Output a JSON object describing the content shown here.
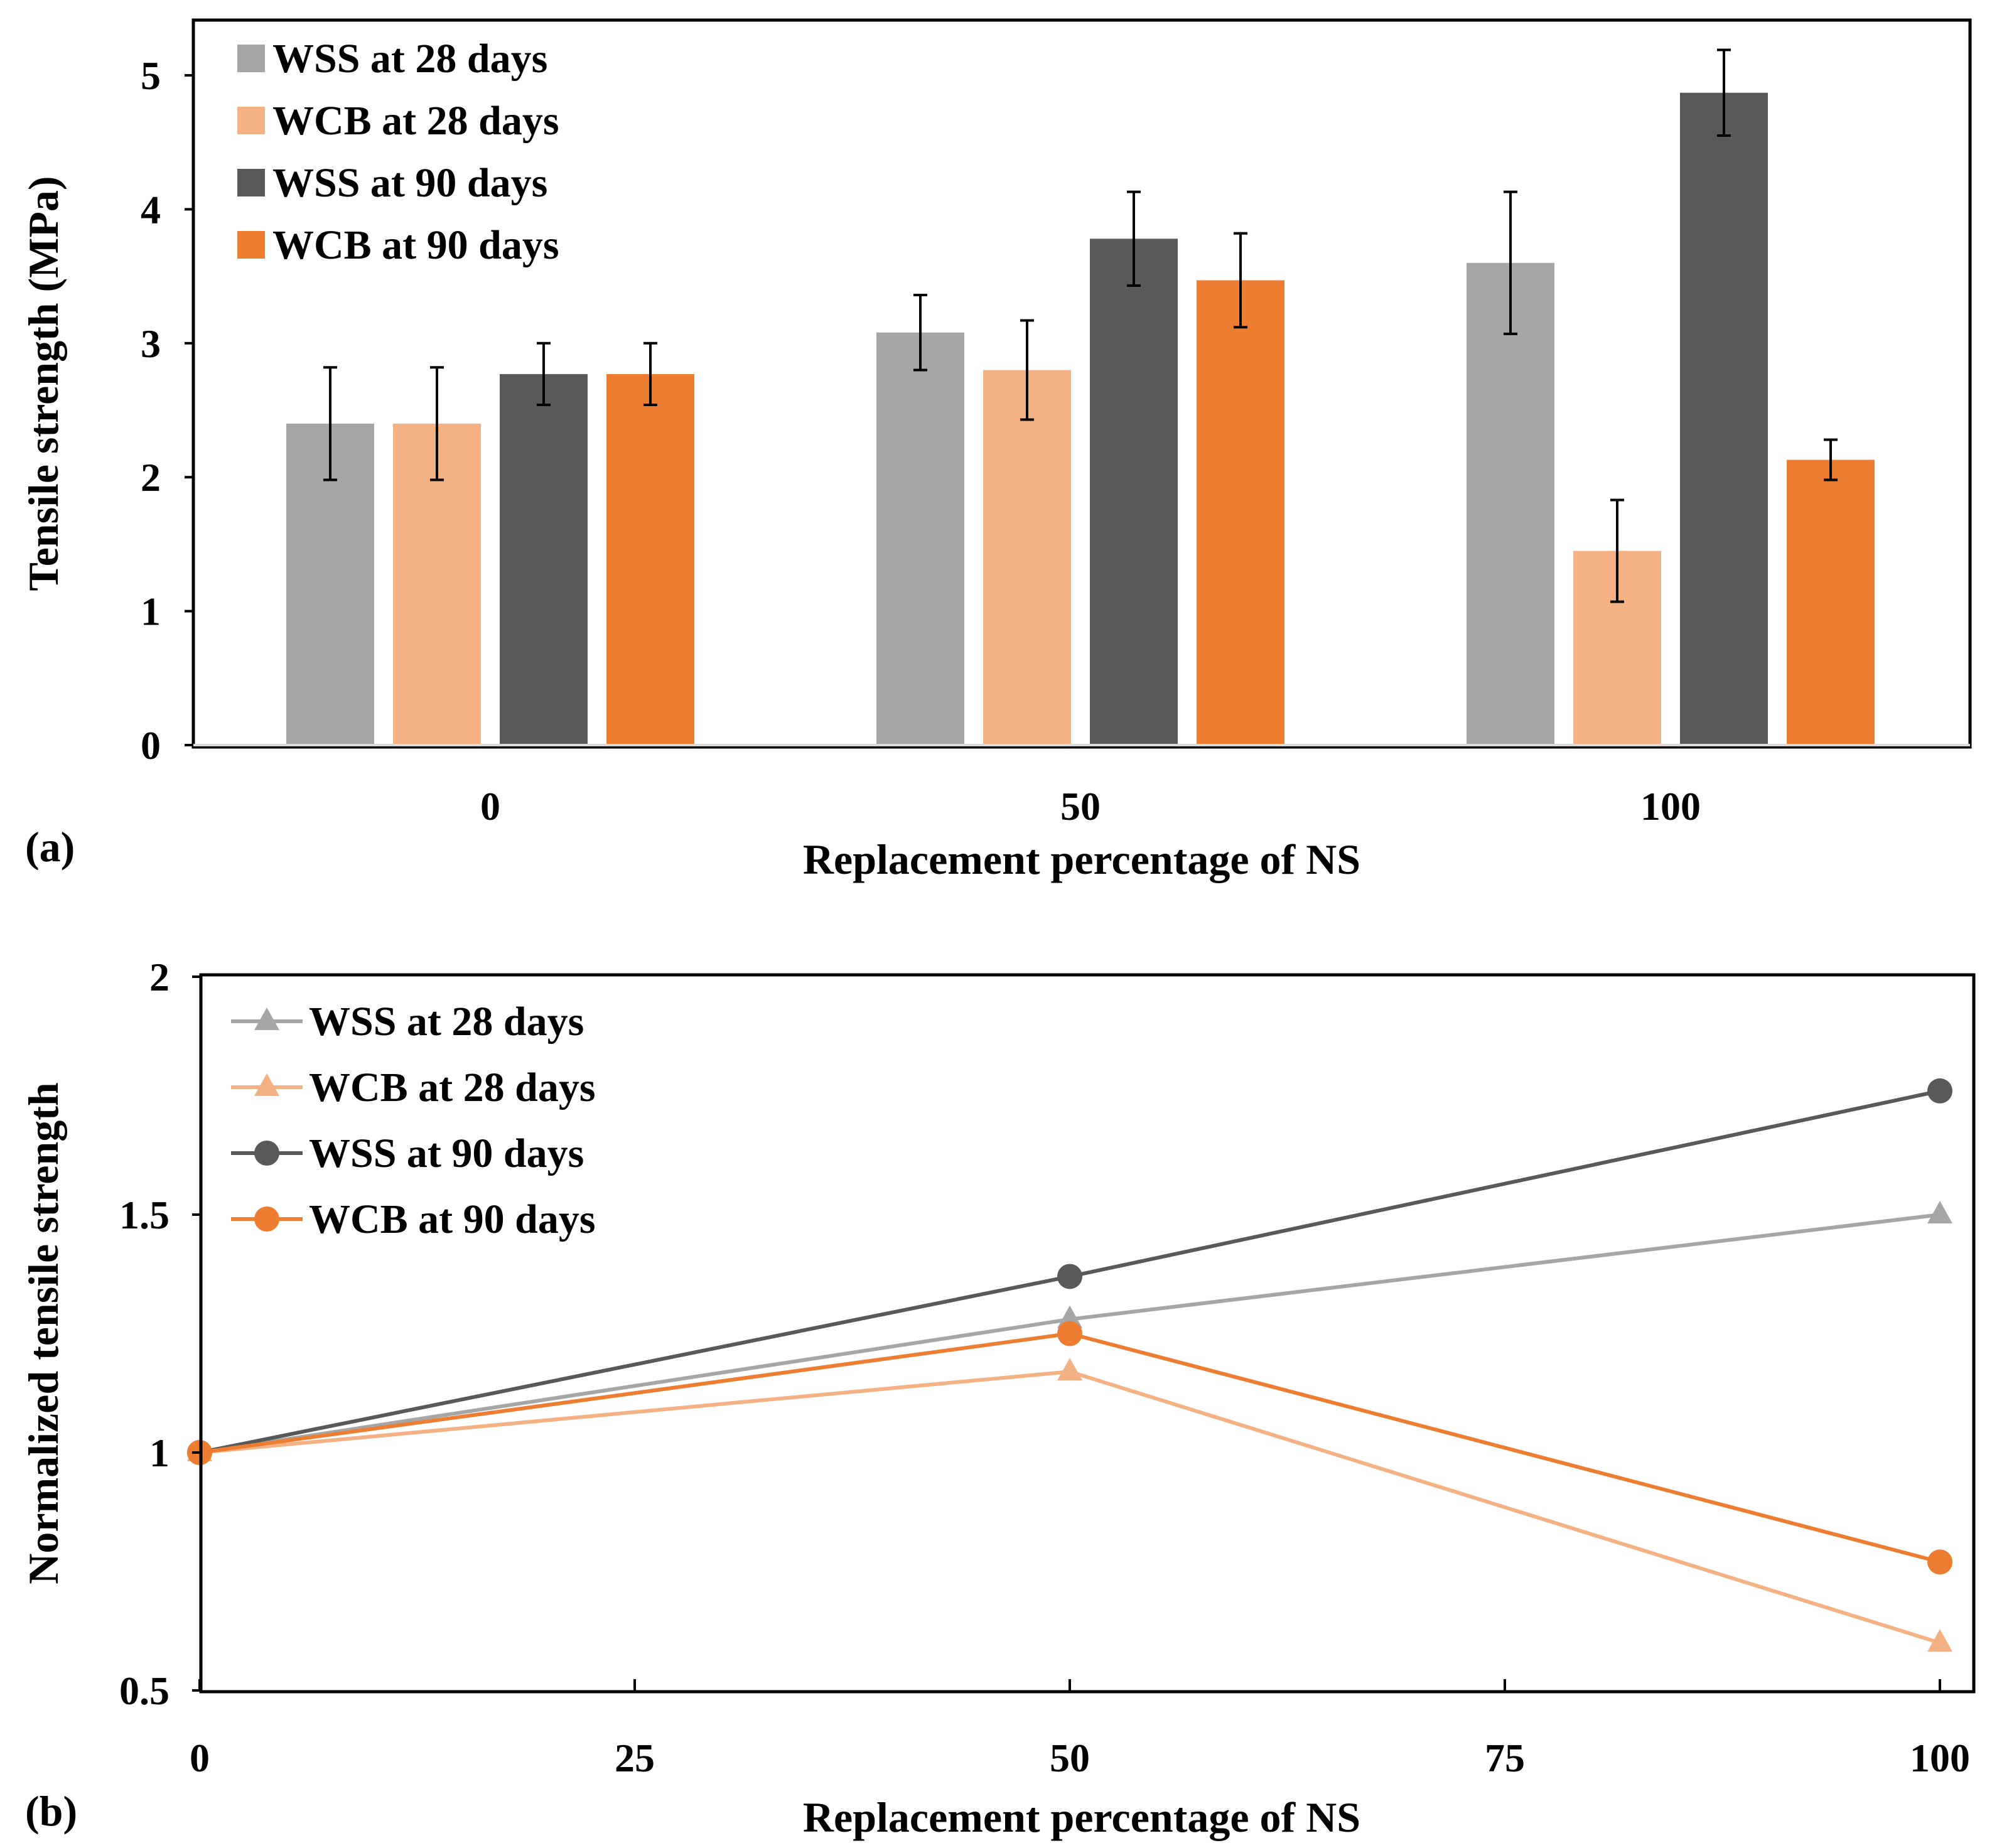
{
  "colors": {
    "wss28": "#A6A6A6",
    "wcb28": "#F4B183",
    "wss90": "#595959",
    "wcb90": "#ED7D31",
    "axis": "#000000",
    "error_bar": "#000000"
  },
  "chart_data": [
    {
      "panel": "(a)",
      "type": "bar",
      "title": "",
      "xlabel": "Replacement percentage of NS",
      "ylabel": "Tensile strength (MPa)",
      "categories": [
        "0",
        "50",
        "100"
      ],
      "ylim": [
        0,
        5.4
      ],
      "yticks": [
        0,
        1,
        2,
        3,
        4,
        5
      ],
      "ytick_labels": [
        "0",
        "1",
        "2",
        "3",
        "4",
        "5"
      ],
      "grid": false,
      "legend_position": "top-left",
      "series": [
        {
          "name": "WSS at 28 days",
          "color_key": "wss28",
          "values": [
            2.4,
            3.08,
            3.6
          ],
          "errors": [
            0.42,
            0.28,
            0.53
          ]
        },
        {
          "name": "WCB at 28 days",
          "color_key": "wcb28",
          "values": [
            2.4,
            2.8,
            1.45
          ],
          "errors": [
            0.42,
            0.37,
            0.38
          ]
        },
        {
          "name": "WSS at 90 days",
          "color_key": "wss90",
          "values": [
            2.77,
            3.78,
            4.87
          ],
          "errors": [
            0.23,
            0.35,
            0.32
          ]
        },
        {
          "name": "WCB at 90 days",
          "color_key": "wcb90",
          "values": [
            2.77,
            3.47,
            2.13
          ],
          "errors": [
            0.23,
            0.35,
            0.15
          ]
        }
      ]
    },
    {
      "panel": "(b)",
      "type": "line",
      "title": "",
      "xlabel": "Replacement percentage of NS",
      "ylabel": "Normalized tensile strength",
      "x": [
        0,
        50,
        100
      ],
      "xlim": [
        0,
        100
      ],
      "ylim": [
        0.5,
        2
      ],
      "xticks": [
        0,
        25,
        50,
        75,
        100
      ],
      "xtick_labels": [
        "0",
        "25",
        "50",
        "75",
        "100"
      ],
      "yticks": [
        0.5,
        1,
        1.5,
        2
      ],
      "ytick_labels": [
        "0.5",
        "1",
        "1.5",
        "2"
      ],
      "grid": false,
      "legend_position": "top-left",
      "series": [
        {
          "name": "WSS at 28 days",
          "color_key": "wss28",
          "marker": "triangle",
          "values": [
            1.0,
            1.28,
            1.5
          ]
        },
        {
          "name": "WCB at 28 days",
          "color_key": "wcb28",
          "marker": "triangle",
          "values": [
            1.0,
            1.17,
            0.6
          ]
        },
        {
          "name": "WSS at 90 days",
          "color_key": "wss90",
          "marker": "circle",
          "values": [
            1.0,
            1.37,
            1.76
          ]
        },
        {
          "name": "WCB at 90 days",
          "color_key": "wcb90",
          "marker": "circle",
          "values": [
            1.0,
            1.25,
            0.77
          ]
        }
      ]
    }
  ]
}
